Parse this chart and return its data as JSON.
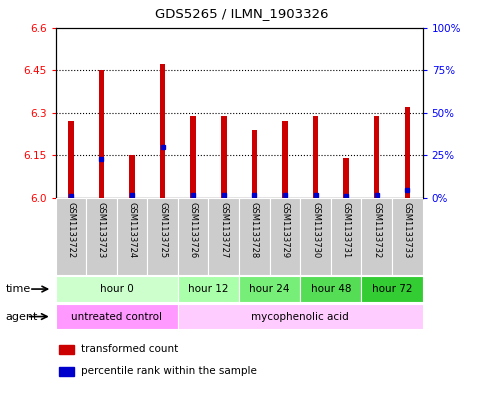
{
  "title": "GDS5265 / ILMN_1903326",
  "samples": [
    "GSM1133722",
    "GSM1133723",
    "GSM1133724",
    "GSM1133725",
    "GSM1133726",
    "GSM1133727",
    "GSM1133728",
    "GSM1133729",
    "GSM1133730",
    "GSM1133731",
    "GSM1133732",
    "GSM1133733"
  ],
  "transformed_counts": [
    6.27,
    6.45,
    6.15,
    6.47,
    6.29,
    6.29,
    6.24,
    6.27,
    6.29,
    6.14,
    6.29,
    6.32
  ],
  "percentile_ranks": [
    1,
    23,
    2,
    30,
    2,
    2,
    2,
    2,
    2,
    1,
    2,
    5
  ],
  "bar_bottom": 6.0,
  "ylim": [
    6.0,
    6.6
  ],
  "yticks_left": [
    6.0,
    6.15,
    6.3,
    6.45,
    6.6
  ],
  "yticks_right_vals": [
    0,
    25,
    50,
    75,
    100
  ],
  "yticks_right_labels": [
    "0%",
    "25%",
    "50%",
    "75%",
    "100%"
  ],
  "red_color": "#cc0000",
  "blue_color": "#0000cc",
  "bar_width": 0.18,
  "time_groups": [
    {
      "label": "hour 0",
      "start": 0,
      "end": 4,
      "color": "#ccffcc"
    },
    {
      "label": "hour 12",
      "start": 4,
      "end": 6,
      "color": "#aaffaa"
    },
    {
      "label": "hour 24",
      "start": 6,
      "end": 8,
      "color": "#77ee77"
    },
    {
      "label": "hour 48",
      "start": 8,
      "end": 10,
      "color": "#55dd55"
    },
    {
      "label": "hour 72",
      "start": 10,
      "end": 12,
      "color": "#33cc33"
    }
  ],
  "agent_groups": [
    {
      "label": "untreated control",
      "start": 0,
      "end": 4,
      "color": "#ff99ff"
    },
    {
      "label": "mycophenolic acid",
      "start": 4,
      "end": 12,
      "color": "#ffccff"
    }
  ],
  "sample_bg_color": "#cccccc",
  "chart_bg_color": "#ffffff",
  "legend_items": [
    {
      "color": "#cc0000",
      "label": "transformed count"
    },
    {
      "color": "#0000cc",
      "label": "percentile rank within the sample"
    }
  ]
}
